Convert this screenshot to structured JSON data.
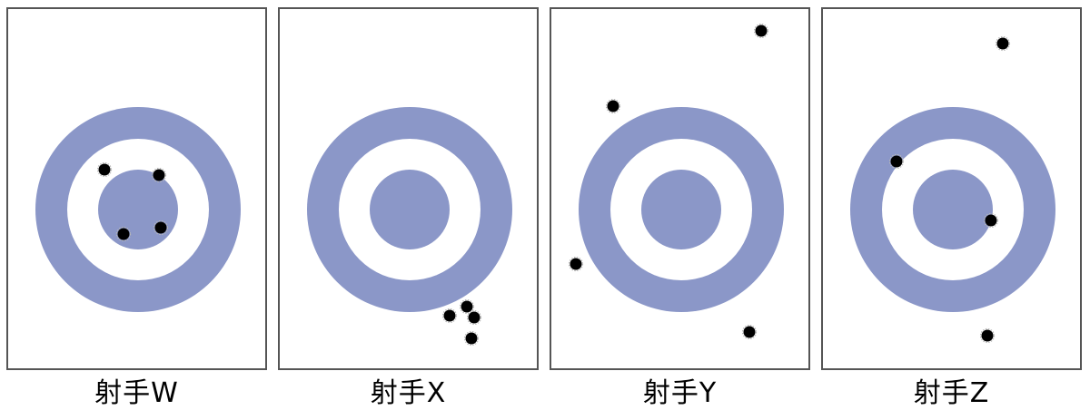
{
  "colors": {
    "ring": "#8b97c8",
    "ring_gap": "#ffffff",
    "hit": "#000000",
    "panel_border": "#555555"
  },
  "target_icon": "concentric-ring-target",
  "panels": [
    {
      "label": "射手W",
      "hits": [
        {
          "dx": -37,
          "dy": -44
        },
        {
          "dx": 23,
          "dy": -38
        },
        {
          "dx": -16,
          "dy": 27
        },
        {
          "dx": 25,
          "dy": 20
        }
      ]
    },
    {
      "label": "射手X",
      "hits": [
        {
          "dx": 63,
          "dy": 107
        },
        {
          "dx": 71,
          "dy": 119
        },
        {
          "dx": 44,
          "dy": 117
        },
        {
          "dx": 68,
          "dy": 142
        }
      ]
    },
    {
      "label": "射手Y",
      "hits": [
        {
          "dx": 88,
          "dy": -197
        },
        {
          "dx": -75,
          "dy": -114
        },
        {
          "dx": -116,
          "dy": 60
        },
        {
          "dx": 75,
          "dy": 135
        }
      ]
    },
    {
      "label": "射手Z",
      "hits": [
        {
          "dx": 55,
          "dy": -183
        },
        {
          "dx": -62,
          "dy": -53
        },
        {
          "dx": 42,
          "dy": 12
        },
        {
          "dx": 38,
          "dy": 139
        }
      ]
    }
  ]
}
